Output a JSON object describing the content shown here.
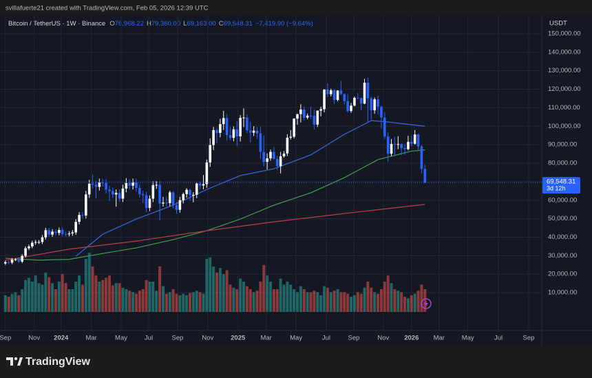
{
  "header": {
    "attribution": "svillafuerte21 created with TradingView.com, Feb 05, 2026 12:39 UTC"
  },
  "footer": {
    "brand": "TradingView"
  },
  "chart_data": {
    "type": "candlestick",
    "title": "Bitcoin / TetherUS · 1W · Binance",
    "ohlc_legend": [
      {
        "label": "O",
        "value": "76,968.22"
      },
      {
        "label": "H",
        "value": "79,360.00"
      },
      {
        "label": "L",
        "value": "69,163.00"
      },
      {
        "label": "C",
        "value": "69,548.31"
      }
    ],
    "change": "−7,419.90 (−9.64%)",
    "currency": "USDT",
    "last_price_label": "69,548.31",
    "countdown": "3d 12h",
    "up_color": "#ffffff",
    "down_color": "#2962ff",
    "ylim": [
      -400,
      157800
    ],
    "yticks": [
      {
        "value": 10000,
        "label": "10,000.00"
      },
      {
        "value": 20000,
        "label": "20,000.00"
      },
      {
        "value": 30000,
        "label": "30,000.00"
      },
      {
        "value": 40000,
        "label": "40,000.00"
      },
      {
        "value": 50000,
        "label": "50,000.00"
      },
      {
        "value": 60000,
        "label": "60,000.00"
      },
      {
        "value": 70000,
        "label": "70,000.00"
      },
      {
        "value": 80000,
        "label": "80,000.00"
      },
      {
        "value": 90000,
        "label": "90,000.00"
      },
      {
        "value": 100000,
        "label": "100,000.00"
      },
      {
        "value": 110000,
        "label": "110,000.00"
      },
      {
        "value": 120000,
        "label": "120,000.00"
      },
      {
        "value": 130000,
        "label": "130,000.00"
      },
      {
        "value": 140000,
        "label": "140,000.00"
      },
      {
        "value": 150000,
        "label": "150,000.00"
      }
    ],
    "xlim": [
      -1.6,
      159.8
    ],
    "xticks": [
      {
        "value": 0,
        "label": "Sep"
      },
      {
        "value": 8.6,
        "label": "Nov"
      },
      {
        "value": 16.6,
        "label": "2024"
      },
      {
        "value": 25.6,
        "label": "Mar"
      },
      {
        "value": 34.5,
        "label": "May"
      },
      {
        "value": 42.7,
        "label": "Jul"
      },
      {
        "value": 51.3,
        "label": "Sep"
      },
      {
        "value": 60.3,
        "label": "Nov"
      },
      {
        "value": 69.3,
        "label": "2025"
      },
      {
        "value": 77.7,
        "label": "Mar"
      },
      {
        "value": 86.6,
        "label": "May"
      },
      {
        "value": 95.6,
        "label": "Jul"
      },
      {
        "value": 103.8,
        "label": "Sep"
      },
      {
        "value": 112.6,
        "label": "Nov"
      },
      {
        "value": 121.0,
        "label": "2026"
      },
      {
        "value": 129.2,
        "label": "Mar"
      },
      {
        "value": 137.8,
        "label": "May"
      },
      {
        "value": 146.9,
        "label": "Jul"
      },
      {
        "value": 155.9,
        "label": "Sep"
      }
    ],
    "grid": true,
    "open": [
      25800,
      26500,
      26200,
      27900,
      27900,
      26800,
      29900,
      34000,
      35000,
      37000,
      37400,
      37400,
      39900,
      43800,
      41400,
      43000,
      42300,
      43900,
      41700,
      41600,
      42000,
      42600,
      48300,
      52000,
      51700,
      63100,
      68900,
      68400,
      67200,
      69600,
      69400,
      65700,
      64900,
      63100,
      63900,
      60800,
      66300,
      69300,
      67800,
      69600,
      66600,
      63200,
      62700,
      55800,
      60800,
      68200,
      68300,
      58200,
      58700,
      58400,
      64200,
      57300,
      54800,
      60000,
      63300,
      65600,
      62800,
      62900,
      69000,
      67900,
      68700,
      80400,
      89800,
      97900,
      96400,
      101100,
      104400,
      95200,
      93700,
      98300,
      94500,
      104500,
      104700,
      97700,
      96500,
      97600,
      96100,
      86100,
      80700,
      82600,
      86100,
      82300,
      78400,
      83700,
      85200,
      93800,
      94300,
      104100,
      106500,
      109000,
      104600,
      105700,
      105600,
      100900,
      108400,
      109200,
      119800,
      117300,
      119400,
      114200,
      119300,
      117400,
      113500,
      108200,
      111100,
      115300,
      115200,
      112200,
      123500,
      115100,
      108600,
      114500,
      110500,
      104700,
      94400,
      85100,
      90400,
      90200,
      90300,
      88200,
      87600,
      91500,
      90500,
      95500,
      89100,
      76968.22
    ],
    "high": [
      27300,
      27300,
      28700,
      28700,
      28700,
      30800,
      35000,
      36000,
      38100,
      38500,
      38500,
      41100,
      45100,
      45100,
      44300,
      44300,
      45200,
      45200,
      43000,
      43300,
      43900,
      49700,
      53600,
      53600,
      65000,
      71000,
      73800,
      70500,
      71700,
      71700,
      71500,
      67700,
      66800,
      65800,
      65800,
      68300,
      71900,
      71400,
      71700,
      71700,
      68600,
      65100,
      64600,
      62600,
      70200,
      70300,
      70300,
      61800,
      61800,
      65100,
      64900,
      59000,
      61800,
      64100,
      66500,
      66100,
      64400,
      69400,
      69900,
      73600,
      82000,
      93400,
      99600,
      98800,
      104000,
      108300,
      106500,
      99500,
      99900,
      102700,
      106000,
      109600,
      106400,
      102500,
      100000,
      99500,
      99500,
      95000,
      85300,
      87400,
      88800,
      84000,
      86100,
      86500,
      95700,
      97900,
      104300,
      106700,
      111900,
      110700,
      106800,
      110600,
      108900,
      108500,
      110600,
      120000,
      123200,
      120300,
      120000,
      119500,
      124500,
      117600,
      117400,
      112600,
      116000,
      117900,
      115400,
      125600,
      126200,
      115900,
      115500,
      116400,
      111200,
      107500,
      96600,
      93100,
      94200,
      94600,
      90600,
      90400,
      94800,
      94800,
      97900,
      96000,
      90000,
      79360
    ],
    "low": [
      25000,
      25400,
      25400,
      27100,
      26000,
      26000,
      29000,
      33000,
      34000,
      35900,
      36300,
      36300,
      38700,
      40200,
      40200,
      41000,
      41000,
      40400,
      40400,
      40400,
      40700,
      41300,
      46900,
      50100,
      50100,
      61200,
      66300,
      61000,
      65200,
      67300,
      63700,
      59600,
      61200,
      56500,
      59000,
      59000,
      64300,
      65800,
      65800,
      64600,
      61300,
      58400,
      53500,
      54100,
      59000,
      66100,
      49000,
      56500,
      56700,
      56700,
      55600,
      52600,
      53200,
      58200,
      61400,
      59800,
      58900,
      61000,
      65900,
      65900,
      66700,
      78000,
      87100,
      90800,
      94000,
      98000,
      92200,
      92500,
      91800,
      89300,
      91700,
      99500,
      96200,
      91200,
      94700,
      93300,
      82300,
      78200,
      76600,
      81300,
      81600,
      76100,
      74500,
      83000,
      83900,
      92800,
      93400,
      100800,
      102000,
      103100,
      103700,
      104100,
      98200,
      99600,
      105300,
      107500,
      115700,
      116100,
      112000,
      113500,
      116800,
      111700,
      107300,
      107300,
      110700,
      114400,
      108600,
      111900,
      102000,
      103500,
      106700,
      106300,
      98900,
      93000,
      80600,
      83800,
      84000,
      87600,
      84400,
      84500,
      86900,
      89300,
      90000,
      87300,
      74600,
      69163
    ],
    "close": [
      26500,
      26200,
      27900,
      27900,
      26800,
      29900,
      34000,
      35000,
      37000,
      37400,
      37400,
      39900,
      43800,
      41400,
      43000,
      42300,
      43900,
      41700,
      41600,
      42000,
      42600,
      48300,
      52000,
      51700,
      63100,
      68900,
      68400,
      67200,
      69600,
      69400,
      65700,
      64900,
      63100,
      63900,
      60800,
      66300,
      69300,
      67800,
      69600,
      66600,
      63200,
      62700,
      55800,
      60800,
      68200,
      68300,
      58200,
      58700,
      58400,
      64200,
      57300,
      54800,
      60000,
      63300,
      65600,
      62800,
      62900,
      69000,
      67900,
      68700,
      80400,
      89800,
      97900,
      96400,
      101100,
      104400,
      95200,
      93700,
      98300,
      94500,
      104500,
      104700,
      97700,
      96500,
      97600,
      96100,
      86100,
      80700,
      82600,
      86100,
      82300,
      78400,
      83700,
      85200,
      93800,
      94300,
      104100,
      106500,
      109000,
      104600,
      105700,
      105600,
      100900,
      108400,
      109200,
      119800,
      117300,
      119400,
      114200,
      119300,
      117400,
      113500,
      108200,
      111100,
      115300,
      115200,
      112200,
      123500,
      115100,
      108600,
      114500,
      110500,
      104700,
      94400,
      85100,
      90400,
      90200,
      90300,
      88200,
      87600,
      91500,
      90500,
      95500,
      89100,
      76900,
      69548.31
    ],
    "volume": {
      "vlim": [
        0,
        100
      ],
      "up_color": "#26a69a",
      "down_color": "#ef5350",
      "values": [
        22,
        20,
        24,
        26,
        22,
        30,
        42,
        45,
        40,
        48,
        38,
        36,
        52,
        46,
        38,
        30,
        40,
        50,
        38,
        30,
        30,
        40,
        48,
        36,
        70,
        78,
        60,
        48,
        40,
        42,
        45,
        48,
        35,
        38,
        38,
        32,
        30,
        28,
        26,
        24,
        28,
        30,
        42,
        40,
        40,
        28,
        60,
        34,
        24,
        26,
        30,
        24,
        22,
        24,
        22,
        25,
        26,
        28,
        26,
        24,
        70,
        72,
        60,
        52,
        58,
        50,
        55,
        36,
        32,
        30,
        44,
        40,
        34,
        30,
        26,
        28,
        40,
        62,
        48,
        40,
        30,
        30,
        44,
        36,
        40,
        36,
        30,
        26,
        34,
        30,
        26,
        26,
        28,
        26,
        22,
        34,
        32,
        26,
        28,
        30,
        26,
        26,
        24,
        20,
        22,
        26,
        24,
        32,
        40,
        32,
        26,
        24,
        30,
        40,
        48,
        38,
        30,
        28,
        26,
        20,
        18,
        22,
        24,
        28,
        36,
        30
      ]
    },
    "overlays": [
      {
        "color": "#3a5fcd",
        "x": [
          21,
          29,
          39,
          50,
          60,
          70,
          80,
          91,
          101,
          109,
          113,
          125
        ],
        "values": [
          29700,
          41600,
          49800,
          57300,
          65800,
          73300,
          77000,
          84500,
          95600,
          103000,
          102500,
          100000
        ]
      },
      {
        "color": "#3f8f4a",
        "x": [
          0,
          10,
          19,
          29,
          39,
          50,
          60,
          70,
          80,
          91,
          101,
          111,
          121,
          125
        ],
        "values": [
          28600,
          27600,
          28000,
          31200,
          34200,
          38700,
          43500,
          49800,
          57300,
          64000,
          72200,
          81900,
          86500,
          87200
        ]
      },
      {
        "color": "#b23a48",
        "x": [
          0,
          19,
          39,
          60,
          80,
          101,
          125
        ],
        "values": [
          27500,
          33500,
          37900,
          43500,
          48300,
          52800,
          57700
        ]
      }
    ]
  }
}
